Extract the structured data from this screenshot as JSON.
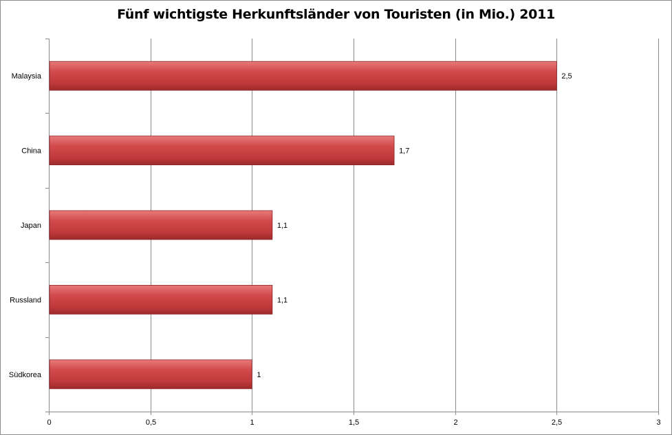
{
  "chart_data": {
    "type": "bar",
    "orientation": "horizontal",
    "title": "Fünf wichtigste Herkunftsländer von Touristen (in Mio.) 2011",
    "xlabel": "",
    "ylabel": "",
    "categories": [
      "Malaysia",
      "China",
      "Japan",
      "Russland",
      "Südkorea"
    ],
    "values": [
      2.5,
      1.7,
      1.1,
      1.1,
      1
    ],
    "data_labels": [
      "2,5",
      "1,7",
      "1,1",
      "1,1",
      "1"
    ],
    "xlim": [
      0,
      3
    ],
    "x_ticks": [
      "0",
      "0,5",
      "1",
      "1,5",
      "2",
      "2,5",
      "3"
    ],
    "grid": "vertical",
    "legend": "none",
    "bar_color": "#c0393b"
  }
}
